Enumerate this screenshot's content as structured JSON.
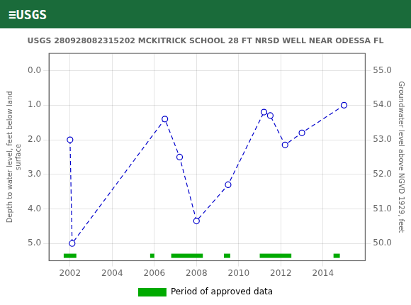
{
  "chart_data": {
    "type": "line",
    "title": "USGS 280928082315202 MCKITRICK SCHOOL 28 FT NRSD WELL NEAR ODESSA FL",
    "annotations": [
      {
        "text": "≡USGS",
        "color": "#1a6b3a"
      }
    ],
    "ylabel": "Depth to water level, feet below land\nsurface",
    "y2label": "Groundwater level above NGVD 1929, feet",
    "x": [
      2002.0,
      2002.1,
      2006.5,
      2007.2,
      2008.0,
      2009.5,
      2011.2,
      2011.5,
      2012.2,
      2013.0,
      2015.0
    ],
    "series": [
      {
        "values": [
          2.0,
          5.0,
          1.4,
          2.5,
          4.35,
          3.3,
          1.2,
          1.3,
          2.15,
          1.8,
          1.0
        ],
        "color": "#0000cc",
        "line_style": "dashed",
        "marker": "circle"
      }
    ],
    "xlim": [
      2001,
      2016
    ],
    "xticks": [
      2002,
      2004,
      2006,
      2008,
      2010,
      2012,
      2014
    ],
    "ylim": [
      5.5,
      -0.5
    ],
    "yticks": [
      {
        "value": 0.0,
        "label": "0.0"
      },
      {
        "value": 1.0,
        "label": "1.0"
      },
      {
        "value": 2.0,
        "label": "2.0"
      },
      {
        "value": 3.0,
        "label": "3.0"
      },
      {
        "value": 4.0,
        "label": "4.0"
      },
      {
        "value": 5.0,
        "label": "5.0"
      }
    ],
    "y2lim": [
      49.5,
      55.5
    ],
    "y2ticks": [
      {
        "value": 50.0,
        "label": "50.0"
      },
      {
        "value": 51.0,
        "label": "51.0"
      },
      {
        "value": 52.0,
        "label": "52.0"
      },
      {
        "value": 53.0,
        "label": "53.0"
      },
      {
        "value": 54.0,
        "label": "54.0"
      },
      {
        "value": 55.0,
        "label": "55.0"
      }
    ],
    "grid": true,
    "legend": "bottom",
    "approved_periods": {
      "name": "Period of approved data",
      "color": "#00aa00",
      "ranges": [
        [
          2001.7,
          2002.3
        ],
        [
          2005.8,
          2006.0
        ],
        [
          2006.8,
          2008.3
        ],
        [
          2009.3,
          2009.6
        ],
        [
          2011.0,
          2012.5
        ],
        [
          2014.5,
          2014.8
        ]
      ]
    }
  }
}
